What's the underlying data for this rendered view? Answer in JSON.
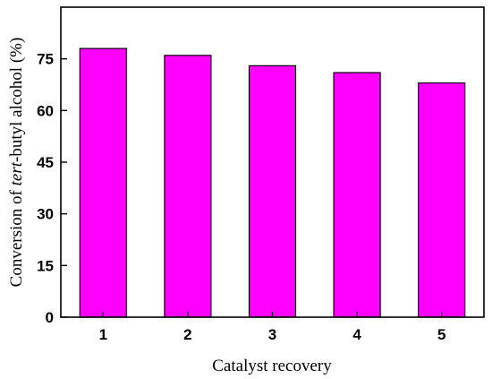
{
  "chart_data": {
    "type": "bar",
    "categories": [
      "1",
      "2",
      "3",
      "4",
      "5"
    ],
    "values": [
      78,
      76,
      73,
      71,
      68
    ],
    "xlabel": "Catalyst recovery",
    "ylabel_parts": {
      "prefix": "Conversion of ",
      "italic": "tert",
      "suffix": "-butyl alcohol (%)"
    },
    "ylim": [
      0,
      90
    ],
    "yticks": [
      "0",
      "15",
      "30",
      "45",
      "60",
      "75"
    ],
    "grid": false,
    "legend": "none",
    "colors": {
      "bar_fill": "#ff00ff",
      "bar_stroke": "#000000",
      "axis": "#000000"
    }
  }
}
